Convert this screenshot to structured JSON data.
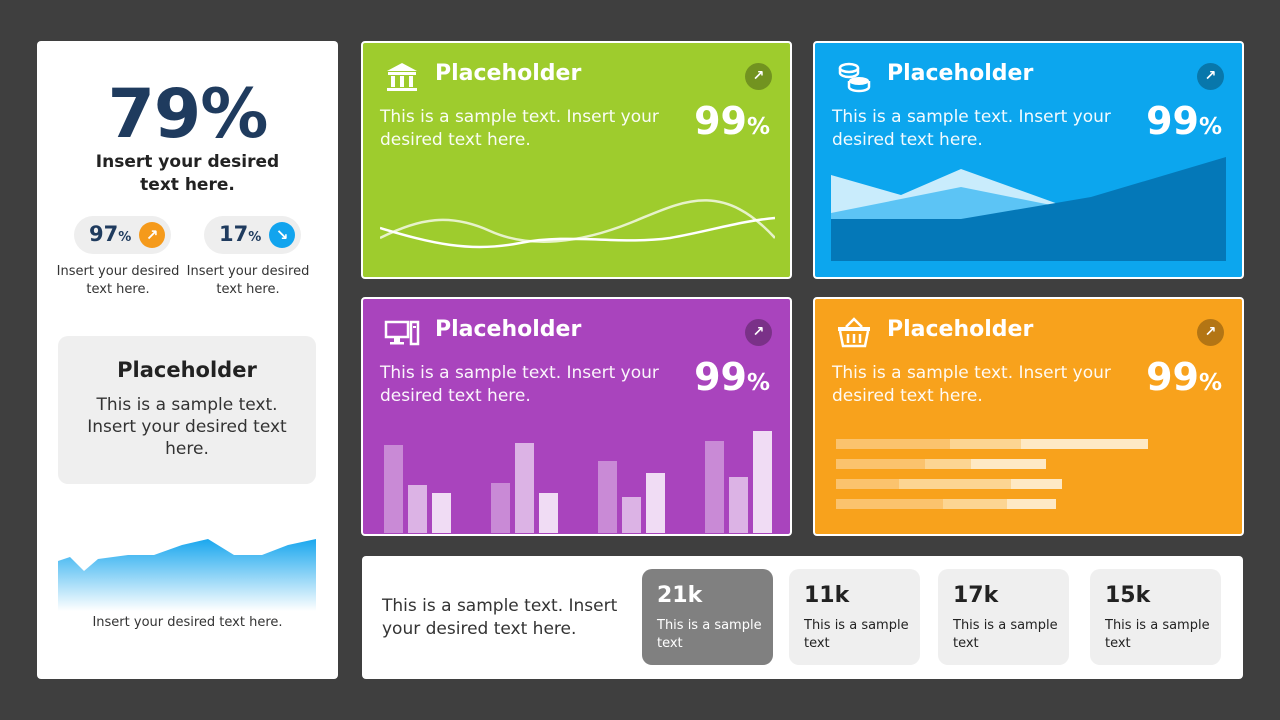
{
  "left_panel": {
    "main_percent": "79%",
    "main_caption": "Insert your desired text here.",
    "kpis": [
      {
        "value": "97",
        "unit": "%",
        "direction": "up",
        "color": "#f59a1b",
        "caption": "Insert your desired text here."
      },
      {
        "value": "17",
        "unit": "%",
        "direction": "down",
        "color": "#12a4ee",
        "caption": "Insert your desired text here."
      }
    ],
    "placeholder_box": {
      "title": "Placeholder",
      "text": "This is a sample text. Insert your desired text here."
    },
    "area_chart_caption": "Insert your desired text here."
  },
  "cards": [
    {
      "title": "Placeholder",
      "text": "This is a sample text. Insert your desired text here.",
      "percent": "99",
      "unit": "%",
      "icon": "bank-icon",
      "color": "#9ecc2d"
    },
    {
      "title": "Placeholder",
      "text": "This is a sample text. Insert your desired text here.",
      "percent": "99",
      "unit": "%",
      "icon": "coins-icon",
      "color": "#0ca6ee"
    },
    {
      "title": "Placeholder",
      "text": "This is a sample text. Insert your desired text here.",
      "percent": "99",
      "unit": "%",
      "icon": "computer-icon",
      "color": "#a944bd"
    },
    {
      "title": "Placeholder",
      "text": "This is a sample text. Insert your desired text here.",
      "percent": "99",
      "unit": "%",
      "icon": "basket-icon",
      "color": "#f8a21c"
    }
  ],
  "bottom_panel": {
    "text": "This is a sample text. Insert your desired text here.",
    "stats": [
      {
        "value": "21k",
        "caption": "This is a sample text"
      },
      {
        "value": "11k",
        "caption": "This is a sample text"
      },
      {
        "value": "17k",
        "caption": "This is a sample text"
      },
      {
        "value": "15k",
        "caption": "This is a sample text"
      }
    ]
  }
}
